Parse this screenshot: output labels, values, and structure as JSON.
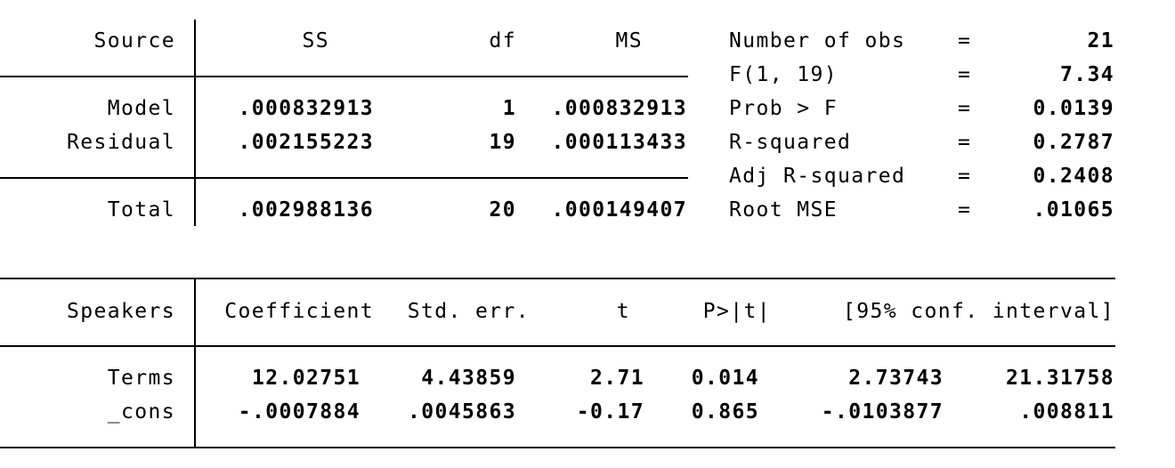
{
  "anova": {
    "headers": {
      "source": "Source",
      "ss": "SS",
      "df": "df",
      "ms": "MS"
    },
    "rows": [
      {
        "source": "Model",
        "ss": ".000832913",
        "df": "1",
        "ms": ".000832913"
      },
      {
        "source": "Residual",
        "ss": ".002155223",
        "df": "19",
        "ms": ".000113433"
      },
      {
        "source": "Total",
        "ss": ".002988136",
        "df": "20",
        "ms": ".000149407"
      }
    ]
  },
  "stats": [
    {
      "label": "Number of obs",
      "eq": "=",
      "value": "21"
    },
    {
      "label": "F(1, 19)",
      "eq": "=",
      "value": "7.34"
    },
    {
      "label": "Prob > F",
      "eq": "=",
      "value": "0.0139"
    },
    {
      "label": "R-squared",
      "eq": "=",
      "value": "0.2787"
    },
    {
      "label": "Adj R-squared",
      "eq": "=",
      "value": "0.2408"
    },
    {
      "label": "Root MSE",
      "eq": "=",
      "value": ".01065"
    }
  ],
  "coef": {
    "headers": {
      "var": "Speakers",
      "coef": "Coefficient",
      "se": "Std. err.",
      "t": "t",
      "p": "P>|t|",
      "ci": "[95% conf. interval]"
    },
    "rows": [
      {
        "var": "Terms",
        "coef": "12.02751",
        "se": "4.43859",
        "t": "2.71",
        "p": "0.014",
        "lo": "2.73743",
        "hi": "21.31758"
      },
      {
        "var": "_cons",
        "coef": "-.0007884",
        "se": ".0045863",
        "t": "-0.17",
        "p": "0.865",
        "lo": "-.0103877",
        "hi": ".008811"
      }
    ]
  }
}
